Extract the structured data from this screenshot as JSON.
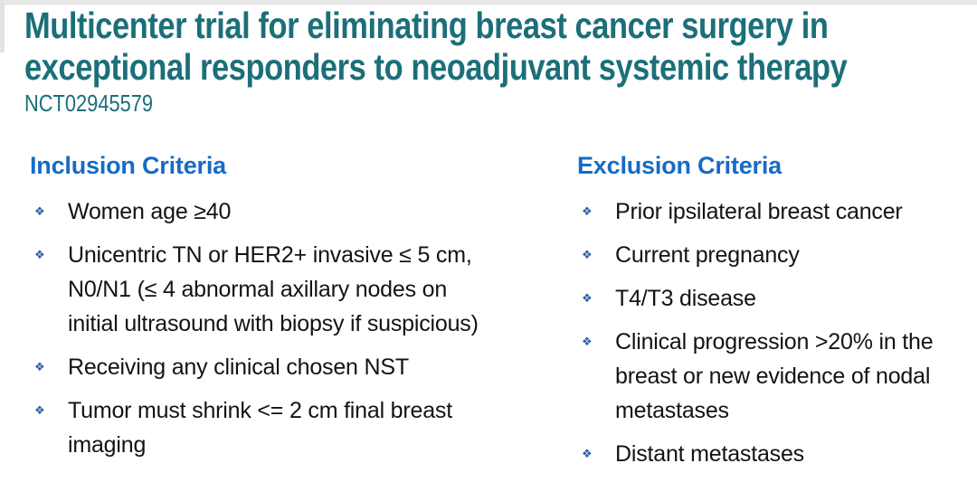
{
  "title": {
    "lines": [
      "Multicenter trial for eliminating breast cancer surgery in",
      "exceptional responders to neoadjuvant systemic therapy"
    ],
    "trial_id": "NCT02945579"
  },
  "bullet_glyph": "❖",
  "columns": [
    {
      "heading": "Inclusion Criteria",
      "items": [
        "Women age ≥40",
        "Unicentric TN or HER2+ invasive ≤ 5 cm, N0/N1 (≤ 4 abnormal axillary nodes on initial ultrasound with biopsy if suspicious)",
        "Receiving any clinical chosen NST",
        "Tumor must shrink <= 2 cm final breast imaging"
      ]
    },
    {
      "heading": "Exclusion Criteria",
      "items": [
        "Prior ipsilateral breast cancer",
        "Current pregnancy",
        "T4/T3 disease",
        "Clinical progression >20% in the breast or new evidence of nodal metastases",
        "Distant metastases"
      ]
    }
  ],
  "colors": {
    "title_teal": "#1b6f79",
    "heading_blue": "#176bc7",
    "body_text": "#131313",
    "bullet_blue": "#2a5ca6",
    "edge_gray": "#e9e9e9"
  }
}
